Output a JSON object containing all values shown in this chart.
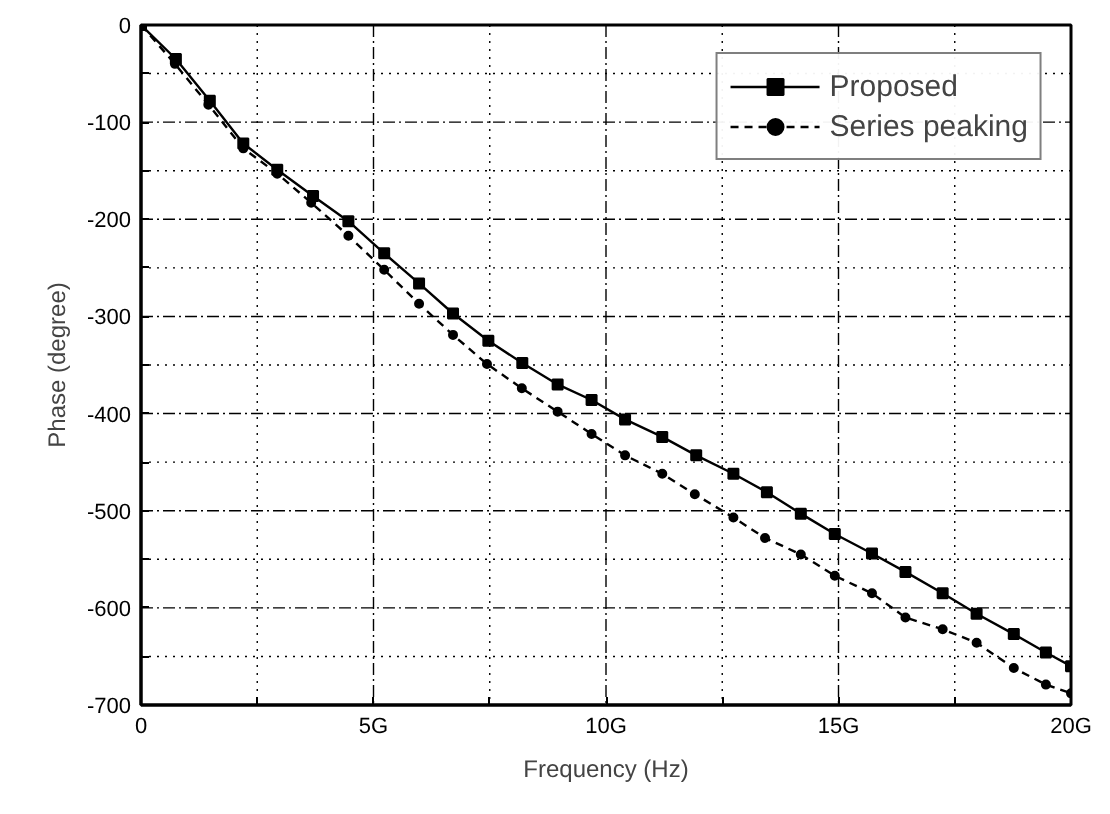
{
  "chart_data": {
    "type": "line",
    "xlabel": "Frequency (Hz)",
    "ylabel": "Phase (degree)",
    "xlim": [
      0,
      20
    ],
    "ylim": [
      -700,
      0
    ],
    "xticks": [
      0,
      {
        "value": 2.5,
        "label": null
      },
      {
        "value": 5,
        "label": "5G"
      },
      {
        "value": 7.5,
        "label": null
      },
      {
        "value": 10,
        "label": "10G"
      },
      {
        "value": 12.5,
        "label": null
      },
      {
        "value": 15,
        "label": "15G"
      },
      {
        "value": 17.5,
        "label": null
      },
      {
        "value": 20,
        "label": "20G"
      }
    ],
    "yticks": [
      -700,
      {
        "value": -650,
        "label": null
      },
      -600,
      {
        "value": -550,
        "label": null
      },
      -500,
      {
        "value": -450,
        "label": null
      },
      -400,
      {
        "value": -350,
        "label": null
      },
      -300,
      {
        "value": -250,
        "label": null
      },
      -200,
      {
        "value": -150,
        "label": null
      },
      -100,
      {
        "value": -50,
        "label": null
      },
      0
    ],
    "grid": true,
    "legend": "top right",
    "series": [
      {
        "name": "Proposed",
        "color": "#000000",
        "marker": "square",
        "line_style": "solid",
        "x": [
          0,
          0.75,
          1.48,
          2.2,
          2.93,
          3.7,
          4.46,
          5.23,
          5.98,
          6.71,
          7.47,
          8.2,
          8.96,
          9.69,
          10.41,
          11.21,
          11.94,
          12.74,
          13.46,
          14.19,
          14.92,
          15.72,
          16.44,
          17.24,
          17.97,
          18.77,
          19.46,
          20
        ],
        "values": [
          0,
          -35,
          -78,
          -122,
          -149,
          -176,
          -202,
          -235,
          -266,
          -297,
          -325,
          -348,
          -370,
          -386,
          -406,
          -424,
          -443,
          -462,
          -481,
          -503,
          -524,
          -544,
          -563,
          -585,
          -606,
          -627,
          -646,
          -660
        ]
      },
      {
        "name": "Series peaking",
        "color": "#000000",
        "marker": "circle",
        "line_style": "dashed",
        "x": [
          0,
          0.73,
          1.45,
          2.2,
          2.93,
          3.66,
          4.46,
          5.23,
          5.98,
          6.71,
          7.44,
          8.19,
          8.96,
          9.69,
          10.41,
          11.21,
          11.91,
          12.74,
          13.42,
          14.19,
          14.92,
          15.72,
          16.44,
          17.24,
          17.97,
          18.77,
          19.46,
          20
        ],
        "values": [
          0,
          -40,
          -82,
          -127,
          -153,
          -183,
          -217,
          -252,
          -287,
          -319,
          -349,
          -374,
          -398,
          -421,
          -443,
          -462,
          -483,
          -507,
          -528,
          -545,
          -567,
          -585,
          -610,
          -622,
          -636,
          -662,
          -679,
          -688
        ]
      }
    ]
  }
}
